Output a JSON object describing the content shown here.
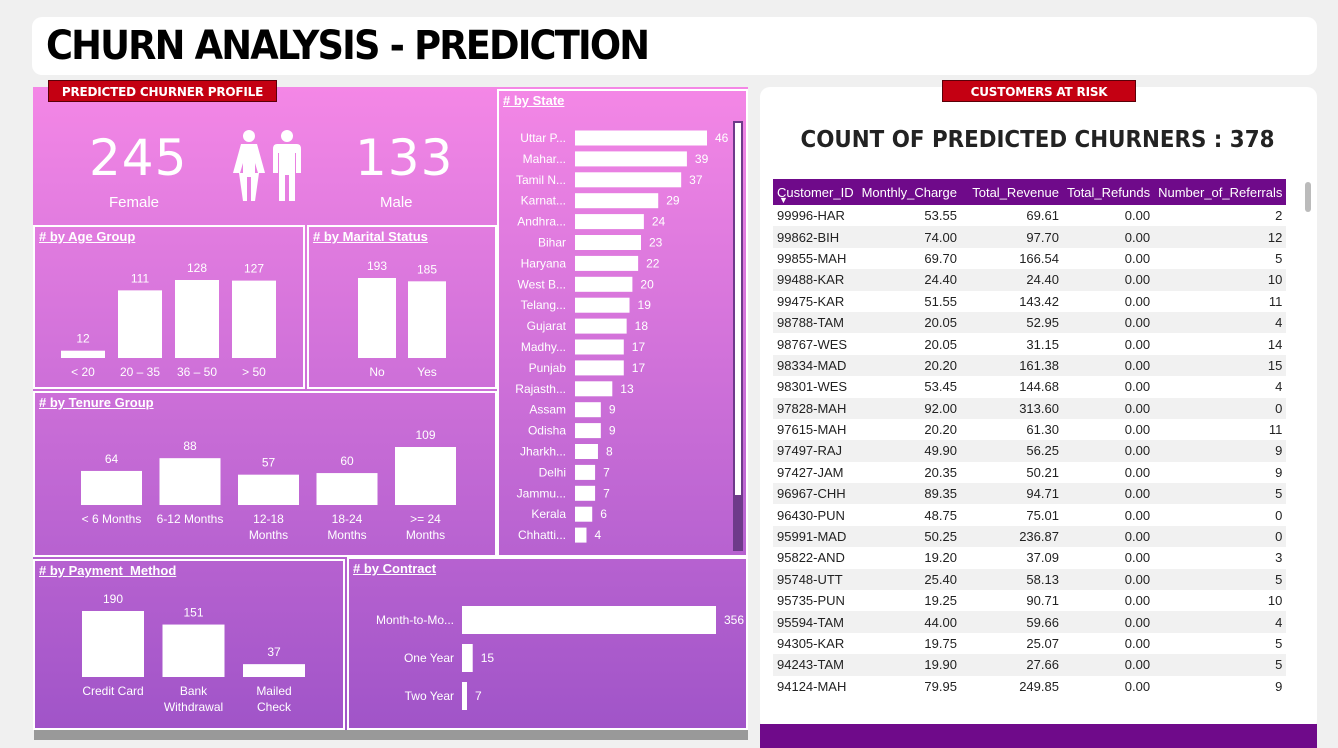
{
  "title": "CHURN ANALYSIS - PREDICTION",
  "badges": {
    "profile": "PREDICTED CHURNER PROFILE",
    "risk": "CUSTOMERS AT RISK"
  },
  "gender": {
    "female_count": "245",
    "female_label": "Female",
    "male_count": "133",
    "male_label": "Male"
  },
  "colors": {
    "panel_top": "#f487e6",
    "panel_bottom": "#a054c8",
    "header_purple": "#6f0a8a",
    "badge_red": "#c40012"
  },
  "chart_data": [
    {
      "type": "bar",
      "title": "# by Age Group",
      "categories": [
        "< 20",
        "20 – 35",
        "36 – 50",
        "> 50"
      ],
      "values": [
        12,
        111,
        128,
        127
      ]
    },
    {
      "type": "bar",
      "title": "# by Marital Status",
      "categories": [
        "No",
        "Yes"
      ],
      "values": [
        193,
        185
      ]
    },
    {
      "type": "bar",
      "title": "# by Tenure Group",
      "categories": [
        "< 6 Months",
        "6-12 Months",
        "12-18 Months",
        "18-24 Months",
        ">= 24 Months"
      ],
      "values": [
        64,
        88,
        57,
        60,
        109
      ]
    },
    {
      "type": "bar",
      "title": "# by Payment_Method",
      "categories": [
        "Credit Card",
        "Bank Withdrawal",
        "Mailed Check"
      ],
      "values": [
        190,
        151,
        37
      ]
    },
    {
      "type": "bar",
      "orientation": "horizontal",
      "title": "# by Contract",
      "categories": [
        "Month-to-Mo...",
        "One Year",
        "Two Year"
      ],
      "values": [
        356,
        15,
        7
      ]
    },
    {
      "type": "bar",
      "orientation": "horizontal",
      "title": "# by State",
      "categories": [
        "Uttar P...",
        "Mahar...",
        "Tamil N...",
        "Karnat...",
        "Andhra...",
        "Bihar",
        "Haryana",
        "West B...",
        "Telang...",
        "Gujarat",
        "Madhy...",
        "Punjab",
        "Rajasth...",
        "Assam",
        "Odisha",
        "Jharkh...",
        "Delhi",
        "Jammu...",
        "Kerala",
        "Chhatti..."
      ],
      "values": [
        46,
        39,
        37,
        29,
        24,
        23,
        22,
        20,
        19,
        18,
        17,
        17,
        13,
        9,
        9,
        8,
        7,
        7,
        6,
        4
      ]
    }
  ],
  "risk": {
    "count_title": "COUNT OF PREDICTED CHURNERS : 378",
    "columns": [
      "Customer_ID",
      "Monthly_Charge",
      "Total_Revenue",
      "Total_Refunds",
      "Number_of_Referrals"
    ],
    "rows": [
      [
        "99996-HAR",
        "53.55",
        "69.61",
        "0.00",
        "2"
      ],
      [
        "99862-BIH",
        "74.00",
        "97.70",
        "0.00",
        "12"
      ],
      [
        "99855-MAH",
        "69.70",
        "166.54",
        "0.00",
        "5"
      ],
      [
        "99488-KAR",
        "24.40",
        "24.40",
        "0.00",
        "10"
      ],
      [
        "99475-KAR",
        "51.55",
        "143.42",
        "0.00",
        "11"
      ],
      [
        "98788-TAM",
        "20.05",
        "52.95",
        "0.00",
        "4"
      ],
      [
        "98767-WES",
        "20.05",
        "31.15",
        "0.00",
        "14"
      ],
      [
        "98334-MAD",
        "20.20",
        "161.38",
        "0.00",
        "15"
      ],
      [
        "98301-WES",
        "53.45",
        "144.68",
        "0.00",
        "4"
      ],
      [
        "97828-MAH",
        "92.00",
        "313.60",
        "0.00",
        "0"
      ],
      [
        "97615-MAH",
        "20.20",
        "61.30",
        "0.00",
        "11"
      ],
      [
        "97497-RAJ",
        "49.90",
        "56.25",
        "0.00",
        "9"
      ],
      [
        "97427-JAM",
        "20.35",
        "50.21",
        "0.00",
        "9"
      ],
      [
        "96967-CHH",
        "89.35",
        "94.71",
        "0.00",
        "5"
      ],
      [
        "96430-PUN",
        "48.75",
        "75.01",
        "0.00",
        "0"
      ],
      [
        "95991-MAD",
        "50.25",
        "236.87",
        "0.00",
        "0"
      ],
      [
        "95822-AND",
        "19.20",
        "37.09",
        "0.00",
        "3"
      ],
      [
        "95748-UTT",
        "25.40",
        "58.13",
        "0.00",
        "5"
      ],
      [
        "95735-PUN",
        "19.25",
        "90.71",
        "0.00",
        "10"
      ],
      [
        "95594-TAM",
        "44.00",
        "59.66",
        "0.00",
        "4"
      ],
      [
        "94305-KAR",
        "19.75",
        "25.07",
        "0.00",
        "5"
      ],
      [
        "94243-TAM",
        "19.90",
        "27.66",
        "0.00",
        "5"
      ],
      [
        "94124-MAH",
        "79.95",
        "249.85",
        "0.00",
        "9"
      ]
    ]
  }
}
